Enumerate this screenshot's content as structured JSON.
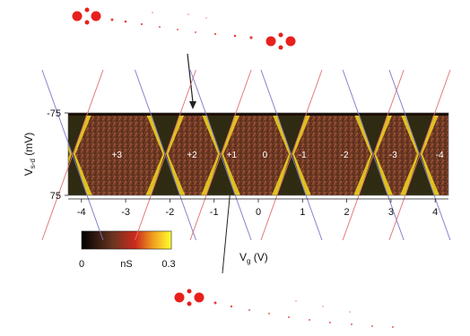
{
  "chart_data": {
    "type": "heatmap",
    "title": "",
    "xlabel": "V_g (V)",
    "ylabel": "V_s-d (mV)",
    "xlim": [
      -4.3,
      4.3
    ],
    "ylim": [
      -75,
      75
    ],
    "x_ticks": [
      "-4",
      "-3",
      "-2",
      "-1",
      "0",
      "1",
      "2",
      "3",
      "4"
    ],
    "y_ticks": [
      "-75",
      "75"
    ],
    "colorbar": {
      "min_label": "0",
      "max_label": "0.3",
      "unit": "nS",
      "colors": [
        "#000000",
        "#6b3520",
        "#cc2a1e",
        "#f0a020",
        "#ffff30"
      ]
    },
    "diamond_labels": [
      {
        "text": "+3",
        "x": -3.2
      },
      {
        "text": "+2",
        "x": -1.5
      },
      {
        "text": "+1",
        "x": -0.6
      },
      {
        "text": "0",
        "x": 0.15
      },
      {
        "text": "-1",
        "x": 1.0
      },
      {
        "text": "-2",
        "x": 1.95
      },
      {
        "text": "-3",
        "x": 3.05
      },
      {
        "text": "-4",
        "x": 4.1
      }
    ],
    "degeneracy_points": [
      -4.2,
      -2.1,
      -0.85,
      0.75,
      2.6,
      3.65
    ],
    "line_colors": {
      "blue": "#7a78c8",
      "red": "#e07070"
    }
  }
}
